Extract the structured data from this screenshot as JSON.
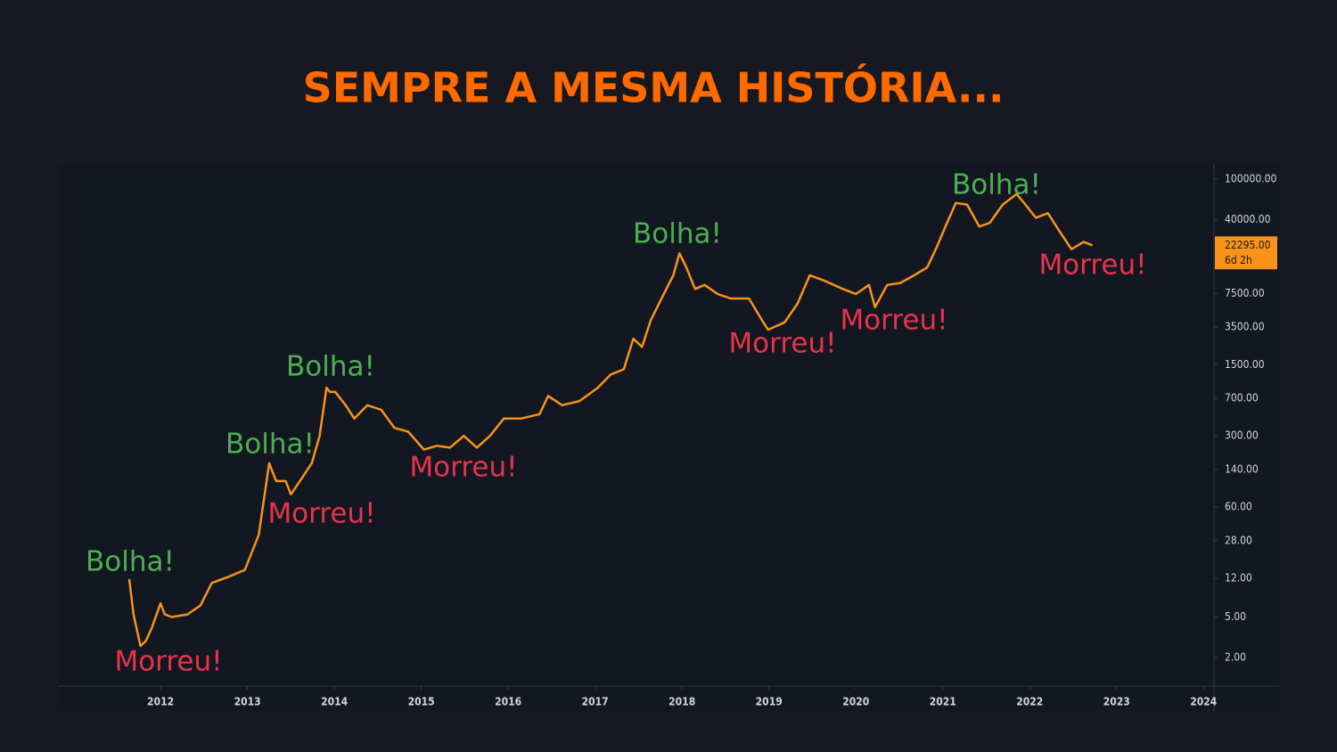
{
  "chart_data": {
    "type": "line",
    "title": "SEMPRE A MESMA HISTÓRIA...",
    "log_scale": true,
    "color": "#f7931a",
    "x": [
      2011.64,
      2011.69,
      2011.77,
      2011.83,
      2011.9,
      2012.0,
      2012.05,
      2012.13,
      2012.31,
      2012.46,
      2012.59,
      2012.77,
      2012.97,
      2013.13,
      2013.25,
      2013.33,
      2013.44,
      2013.5,
      2013.64,
      2013.74,
      2013.83,
      2013.91,
      2013.95,
      2014.01,
      2014.13,
      2014.23,
      2014.38,
      2014.54,
      2014.69,
      2014.85,
      2015.03,
      2015.18,
      2015.33,
      2015.49,
      2015.64,
      2015.79,
      2015.95,
      2016.15,
      2016.36,
      2016.46,
      2016.62,
      2016.82,
      2017.03,
      2017.18,
      2017.33,
      2017.44,
      2017.54,
      2017.64,
      2017.79,
      2017.9,
      2017.97,
      2018.05,
      2018.15,
      2018.26,
      2018.41,
      2018.56,
      2018.77,
      2018.92,
      2018.99,
      2019.18,
      2019.33,
      2019.47,
      2019.64,
      2019.85,
      2020.0,
      2020.15,
      2020.22,
      2020.36,
      2020.51,
      2020.67,
      2020.82,
      2020.92,
      2021.03,
      2021.15,
      2021.28,
      2021.42,
      2021.54,
      2021.69,
      2021.85,
      2021.95,
      2022.07,
      2022.21,
      2022.36,
      2022.48,
      2022.62,
      2022.72
    ],
    "values": [
      11.8,
      5.3,
      2.6,
      2.9,
      3.9,
      6.8,
      5.3,
      5.0,
      5.3,
      6.5,
      10.8,
      12.3,
      14.5,
      32,
      162,
      108,
      108,
      80,
      120,
      162,
      297,
      890,
      810,
      810,
      600,
      444,
      600,
      540,
      360,
      330,
      220,
      240,
      230,
      300,
      230,
      300,
      444,
      444,
      490,
      740,
      600,
      660,
      890,
      1200,
      1350,
      2700,
      2240,
      4100,
      7400,
      11300,
      18600,
      13500,
      8300,
      9100,
      7400,
      6700,
      6700,
      4100,
      3300,
      3900,
      6000,
      11300,
      10000,
      8300,
      7400,
      9100,
      5500,
      9100,
      9500,
      11300,
      13500,
      20400,
      34000,
      58000,
      56000,
      34000,
      37000,
      56000,
      71000,
      56000,
      41500,
      46000,
      29000,
      20400,
      24000,
      22295
    ],
    "xlim": [
      2010.82,
      2024.12
    ],
    "xticks": [
      2012,
      2013,
      2014,
      2015,
      2016,
      2017,
      2018,
      2019,
      2020,
      2021,
      2022,
      2023,
      2024
    ],
    "ylim": [
      1.05,
      143000
    ],
    "yticks": [
      {
        "value": 100000,
        "label": "100000.00"
      },
      {
        "value": 40000,
        "label": "40000.00"
      },
      {
        "value": 7500,
        "label": "7500.00"
      },
      {
        "value": 3500,
        "label": "3500.00"
      },
      {
        "value": 1500,
        "label": "1500.00"
      },
      {
        "value": 700,
        "label": "700.00"
      },
      {
        "value": 300,
        "label": "300.00"
      },
      {
        "value": 140,
        "label": "140.00"
      },
      {
        "value": 60,
        "label": "60.00"
      },
      {
        "value": 28,
        "label": "28.00"
      },
      {
        "value": 12,
        "label": "12.00"
      },
      {
        "value": 5,
        "label": "5.00"
      },
      {
        "value": 2,
        "label": "2.00"
      }
    ],
    "price_tag": {
      "value": 22295,
      "label": "22295.00",
      "countdown": "6d 2h"
    },
    "annotations": [
      {
        "text": "Bolha!",
        "color": "#4caf50"
      },
      {
        "text": "Morreu!",
        "color": "#e8344a"
      },
      {
        "text": "Bolha!",
        "color": "#4caf50"
      },
      {
        "text": "Morreu!",
        "color": "#e8344a"
      },
      {
        "text": "Bolha!",
        "color": "#4caf50"
      },
      {
        "text": "Morreu!",
        "color": "#e8344a"
      },
      {
        "text": "Bolha!",
        "color": "#4caf50"
      },
      {
        "text": "Morreu!",
        "color": "#e8344a"
      },
      {
        "text": "Morreu!",
        "color": "#e8344a"
      },
      {
        "text": "Bolha!",
        "color": "#4caf50"
      },
      {
        "text": "Morreu!",
        "color": "#e8344a"
      }
    ]
  }
}
